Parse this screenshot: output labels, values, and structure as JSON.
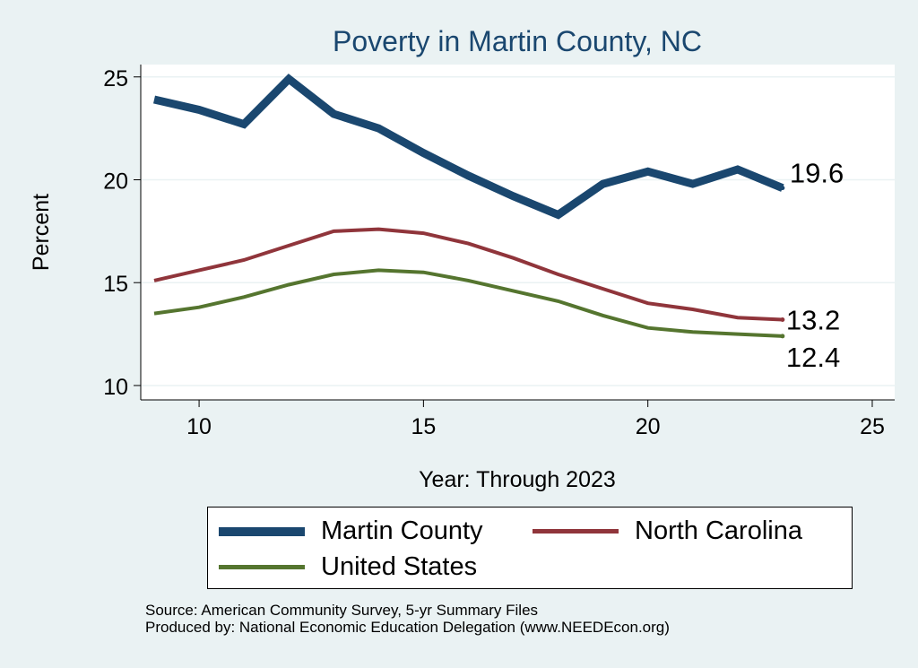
{
  "chart_data": {
    "type": "line",
    "title": "Poverty in Martin County, NC",
    "xlabel": "Year: Through 2023",
    "ylabel": "Percent",
    "xlim": [
      8.7,
      25.5
    ],
    "ylim": [
      9.3,
      25.6
    ],
    "xticks": [
      10,
      15,
      20,
      25
    ],
    "yticks": [
      10,
      15,
      20,
      25
    ],
    "x": [
      9,
      10,
      11,
      12,
      13,
      14,
      15,
      16,
      17,
      18,
      19,
      20,
      21,
      22,
      23
    ],
    "series": [
      {
        "name": "Martin County",
        "color": "#1a476f",
        "values": [
          23.9,
          23.4,
          22.7,
          24.9,
          23.2,
          22.5,
          21.3,
          20.2,
          19.2,
          18.3,
          19.8,
          20.4,
          19.8,
          20.5,
          19.6
        ],
        "end_label": "19.6"
      },
      {
        "name": "North Carolina",
        "color": "#90353b",
        "values": [
          15.1,
          15.6,
          16.1,
          16.8,
          17.5,
          17.6,
          17.4,
          16.9,
          16.2,
          15.4,
          14.7,
          14.0,
          13.7,
          13.3,
          13.2
        ],
        "end_label": "13.2"
      },
      {
        "name": "United States",
        "color": "#55752f",
        "values": [
          13.5,
          13.8,
          14.3,
          14.9,
          15.4,
          15.6,
          15.5,
          15.1,
          14.6,
          14.1,
          13.4,
          12.8,
          12.6,
          12.5,
          12.4
        ],
        "end_label": "12.4"
      }
    ],
    "legend_position": "bottom",
    "grid": true
  },
  "source": {
    "line1": "Source: American Community Survey, 5-yr Summary Files",
    "line2": "Produced by: National Economic Education Delegation (www.NEEDEcon.org)"
  }
}
